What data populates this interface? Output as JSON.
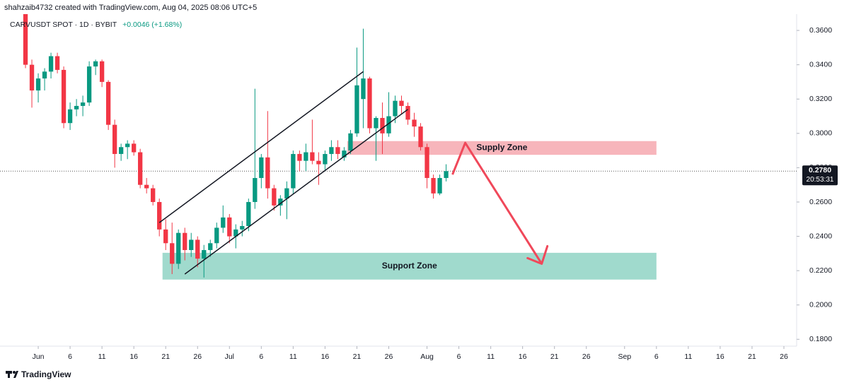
{
  "chart_data": {
    "type": "candlestick",
    "header": "shahzaib4732 created with TradingView.com, Aug 04, 2025 08:06 UTC+5",
    "symbol": "CARVUSDT SPOT · 1D · BYBIT",
    "change": "+0.0046 (+1.68%)",
    "brand": "TradingView",
    "up_color": "#089981",
    "down_color": "#f23645",
    "x": [
      "2025-05-30",
      "2025-05-31",
      "2025-06-01",
      "2025-06-02",
      "2025-06-03",
      "2025-06-04",
      "2025-06-05",
      "2025-06-06",
      "2025-06-07",
      "2025-06-08",
      "2025-06-09",
      "2025-06-10",
      "2025-06-11",
      "2025-06-12",
      "2025-06-13",
      "2025-06-14",
      "2025-06-15",
      "2025-06-16",
      "2025-06-17",
      "2025-06-18",
      "2025-06-19",
      "2025-06-20",
      "2025-06-21",
      "2025-06-22",
      "2025-06-23",
      "2025-06-24",
      "2025-06-25",
      "2025-06-26",
      "2025-06-27",
      "2025-06-28",
      "2025-06-29",
      "2025-06-30",
      "2025-07-01",
      "2025-07-02",
      "2025-07-03",
      "2025-07-04",
      "2025-07-05",
      "2025-07-06",
      "2025-07-07",
      "2025-07-08",
      "2025-07-09",
      "2025-07-10",
      "2025-07-11",
      "2025-07-12",
      "2025-07-13",
      "2025-07-14",
      "2025-07-15",
      "2025-07-16",
      "2025-07-17",
      "2025-07-18",
      "2025-07-19",
      "2025-07-20",
      "2025-07-21",
      "2025-07-22",
      "2025-07-23",
      "2025-07-24",
      "2025-07-25",
      "2025-07-26",
      "2025-07-27",
      "2025-07-28",
      "2025-07-29",
      "2025-07-30",
      "2025-07-31",
      "2025-08-01",
      "2025-08-02",
      "2025-08-03",
      "2025-08-04"
    ],
    "open": [
      0.37,
      0.34,
      0.325,
      0.332,
      0.336,
      0.345,
      0.337,
      0.306,
      0.314,
      0.316,
      0.318,
      0.339,
      0.342,
      0.33,
      0.305,
      0.288,
      0.292,
      0.294,
      0.289,
      0.27,
      0.268,
      0.26,
      0.244,
      0.236,
      0.224,
      0.242,
      0.232,
      0.238,
      0.227,
      0.232,
      0.236,
      0.245,
      0.251,
      0.24,
      0.244,
      0.246,
      0.26,
      0.274,
      0.286,
      0.268,
      0.258,
      0.262,
      0.268,
      0.288,
      0.284,
      0.289,
      0.284,
      0.282,
      0.288,
      0.292,
      0.286,
      0.29,
      0.3,
      0.32,
      0.332,
      0.303,
      0.309,
      0.3,
      0.31,
      0.319,
      0.316,
      0.308,
      0.304,
      0.292,
      0.274,
      0.265,
      0.274
    ],
    "high": [
      0.375,
      0.343,
      0.335,
      0.338,
      0.347,
      0.347,
      0.339,
      0.318,
      0.32,
      0.322,
      0.342,
      0.343,
      0.343,
      0.331,
      0.308,
      0.294,
      0.296,
      0.296,
      0.291,
      0.274,
      0.27,
      0.262,
      0.25,
      0.248,
      0.244,
      0.245,
      0.242,
      0.24,
      0.235,
      0.238,
      0.248,
      0.258,
      0.253,
      0.247,
      0.249,
      0.262,
      0.326,
      0.288,
      0.313,
      0.27,
      0.264,
      0.272,
      0.29,
      0.29,
      0.294,
      0.308,
      0.289,
      0.29,
      0.296,
      0.296,
      0.292,
      0.302,
      0.35,
      0.361,
      0.333,
      0.31,
      0.318,
      0.324,
      0.322,
      0.322,
      0.318,
      0.312,
      0.306,
      0.294,
      0.276,
      0.276,
      0.282
    ],
    "low": [
      0.338,
      0.315,
      0.318,
      0.325,
      0.332,
      0.335,
      0.303,
      0.302,
      0.31,
      0.31,
      0.316,
      0.334,
      0.327,
      0.302,
      0.28,
      0.284,
      0.285,
      0.287,
      0.268,
      0.265,
      0.258,
      0.24,
      0.232,
      0.218,
      0.221,
      0.226,
      0.228,
      0.222,
      0.216,
      0.228,
      0.233,
      0.242,
      0.236,
      0.233,
      0.24,
      0.243,
      0.256,
      0.268,
      0.262,
      0.255,
      0.252,
      0.25,
      0.265,
      0.278,
      0.278,
      0.282,
      0.27,
      0.278,
      0.284,
      0.285,
      0.284,
      0.288,
      0.298,
      0.303,
      0.3,
      0.284,
      0.288,
      0.298,
      0.306,
      0.311,
      0.305,
      0.298,
      0.29,
      0.268,
      0.262,
      0.264,
      0.272
    ],
    "close": [
      0.34,
      0.325,
      0.332,
      0.336,
      0.345,
      0.337,
      0.306,
      0.314,
      0.316,
      0.318,
      0.339,
      0.342,
      0.33,
      0.305,
      0.288,
      0.292,
      0.294,
      0.289,
      0.27,
      0.268,
      0.26,
      0.244,
      0.236,
      0.224,
      0.242,
      0.232,
      0.238,
      0.227,
      0.232,
      0.236,
      0.245,
      0.251,
      0.24,
      0.244,
      0.246,
      0.26,
      0.274,
      0.286,
      0.268,
      0.258,
      0.262,
      0.268,
      0.288,
      0.284,
      0.289,
      0.284,
      0.282,
      0.288,
      0.292,
      0.288,
      0.29,
      0.3,
      0.328,
      0.332,
      0.303,
      0.309,
      0.3,
      0.31,
      0.319,
      0.316,
      0.308,
      0.304,
      0.292,
      0.274,
      0.265,
      0.274,
      0.278
    ],
    "xlim": [
      "2025-05-26",
      "2025-09-28"
    ],
    "ylim": [
      0.176,
      0.3695
    ],
    "yticks": [
      {
        "value": 0.18,
        "label": "0.1800"
      },
      {
        "value": 0.2,
        "label": "0.2000"
      },
      {
        "value": 0.22,
        "label": "0.2200"
      },
      {
        "value": 0.24,
        "label": "0.2400"
      },
      {
        "value": 0.26,
        "label": "0.2600"
      },
      {
        "value": 0.28,
        "label": "0.2800"
      },
      {
        "value": 0.3,
        "label": "0.3000"
      },
      {
        "value": 0.32,
        "label": "0.3200"
      },
      {
        "value": 0.34,
        "label": "0.3400"
      },
      {
        "value": 0.36,
        "label": "0.3600"
      }
    ],
    "xticks": [
      {
        "value": "2025-06-01",
        "label": "Jun"
      },
      {
        "value": "2025-06-06",
        "label": "6"
      },
      {
        "value": "2025-06-11",
        "label": "11"
      },
      {
        "value": "2025-06-16",
        "label": "16"
      },
      {
        "value": "2025-06-21",
        "label": "21"
      },
      {
        "value": "2025-06-26",
        "label": "26"
      },
      {
        "value": "2025-07-01",
        "label": "Jul"
      },
      {
        "value": "2025-07-06",
        "label": "6"
      },
      {
        "value": "2025-07-11",
        "label": "11"
      },
      {
        "value": "2025-07-16",
        "label": "16"
      },
      {
        "value": "2025-07-21",
        "label": "21"
      },
      {
        "value": "2025-07-26",
        "label": "26"
      },
      {
        "value": "2025-08-01",
        "label": "Aug"
      },
      {
        "value": "2025-08-06",
        "label": "6"
      },
      {
        "value": "2025-08-11",
        "label": "11"
      },
      {
        "value": "2025-08-16",
        "label": "16"
      },
      {
        "value": "2025-08-21",
        "label": "21"
      },
      {
        "value": "2025-08-26",
        "label": "26"
      },
      {
        "value": "2025-09-01",
        "label": "Sep"
      },
      {
        "value": "2025-09-06",
        "label": "6"
      },
      {
        "value": "2025-09-11",
        "label": "11"
      },
      {
        "value": "2025-09-16",
        "label": "16"
      },
      {
        "value": "2025-09-21",
        "label": "21"
      },
      {
        "value": "2025-09-26",
        "label": "26"
      }
    ],
    "last_price": {
      "value": 0.278,
      "label": "0.2780"
    },
    "countdown": "20:53:31",
    "channel_lines": [
      {
        "x": [
          "2025-06-20",
          "2025-07-22"
        ],
        "y": [
          0.248,
          0.336
        ]
      },
      {
        "x": [
          "2025-06-24",
          "2025-07-29"
        ],
        "y": [
          0.218,
          0.314
        ]
      }
    ],
    "zones": [
      {
        "label": "Supply Zone",
        "x": [
          "2025-07-20",
          "2025-09-06"
        ],
        "y": [
          0.2875,
          0.2955
        ],
        "color": "#f7b1b7"
      },
      {
        "label": "Support Zone",
        "x": [
          "2025-06-21",
          "2025-09-06"
        ],
        "y": [
          0.2148,
          0.2304
        ],
        "color": "#9bd8ca"
      }
    ],
    "arrow": {
      "x": [
        "2025-08-05",
        "2025-08-07",
        "2025-08-19"
      ],
      "y": [
        0.276,
        0.2945,
        0.224
      ],
      "color": "#f0485a"
    }
  }
}
